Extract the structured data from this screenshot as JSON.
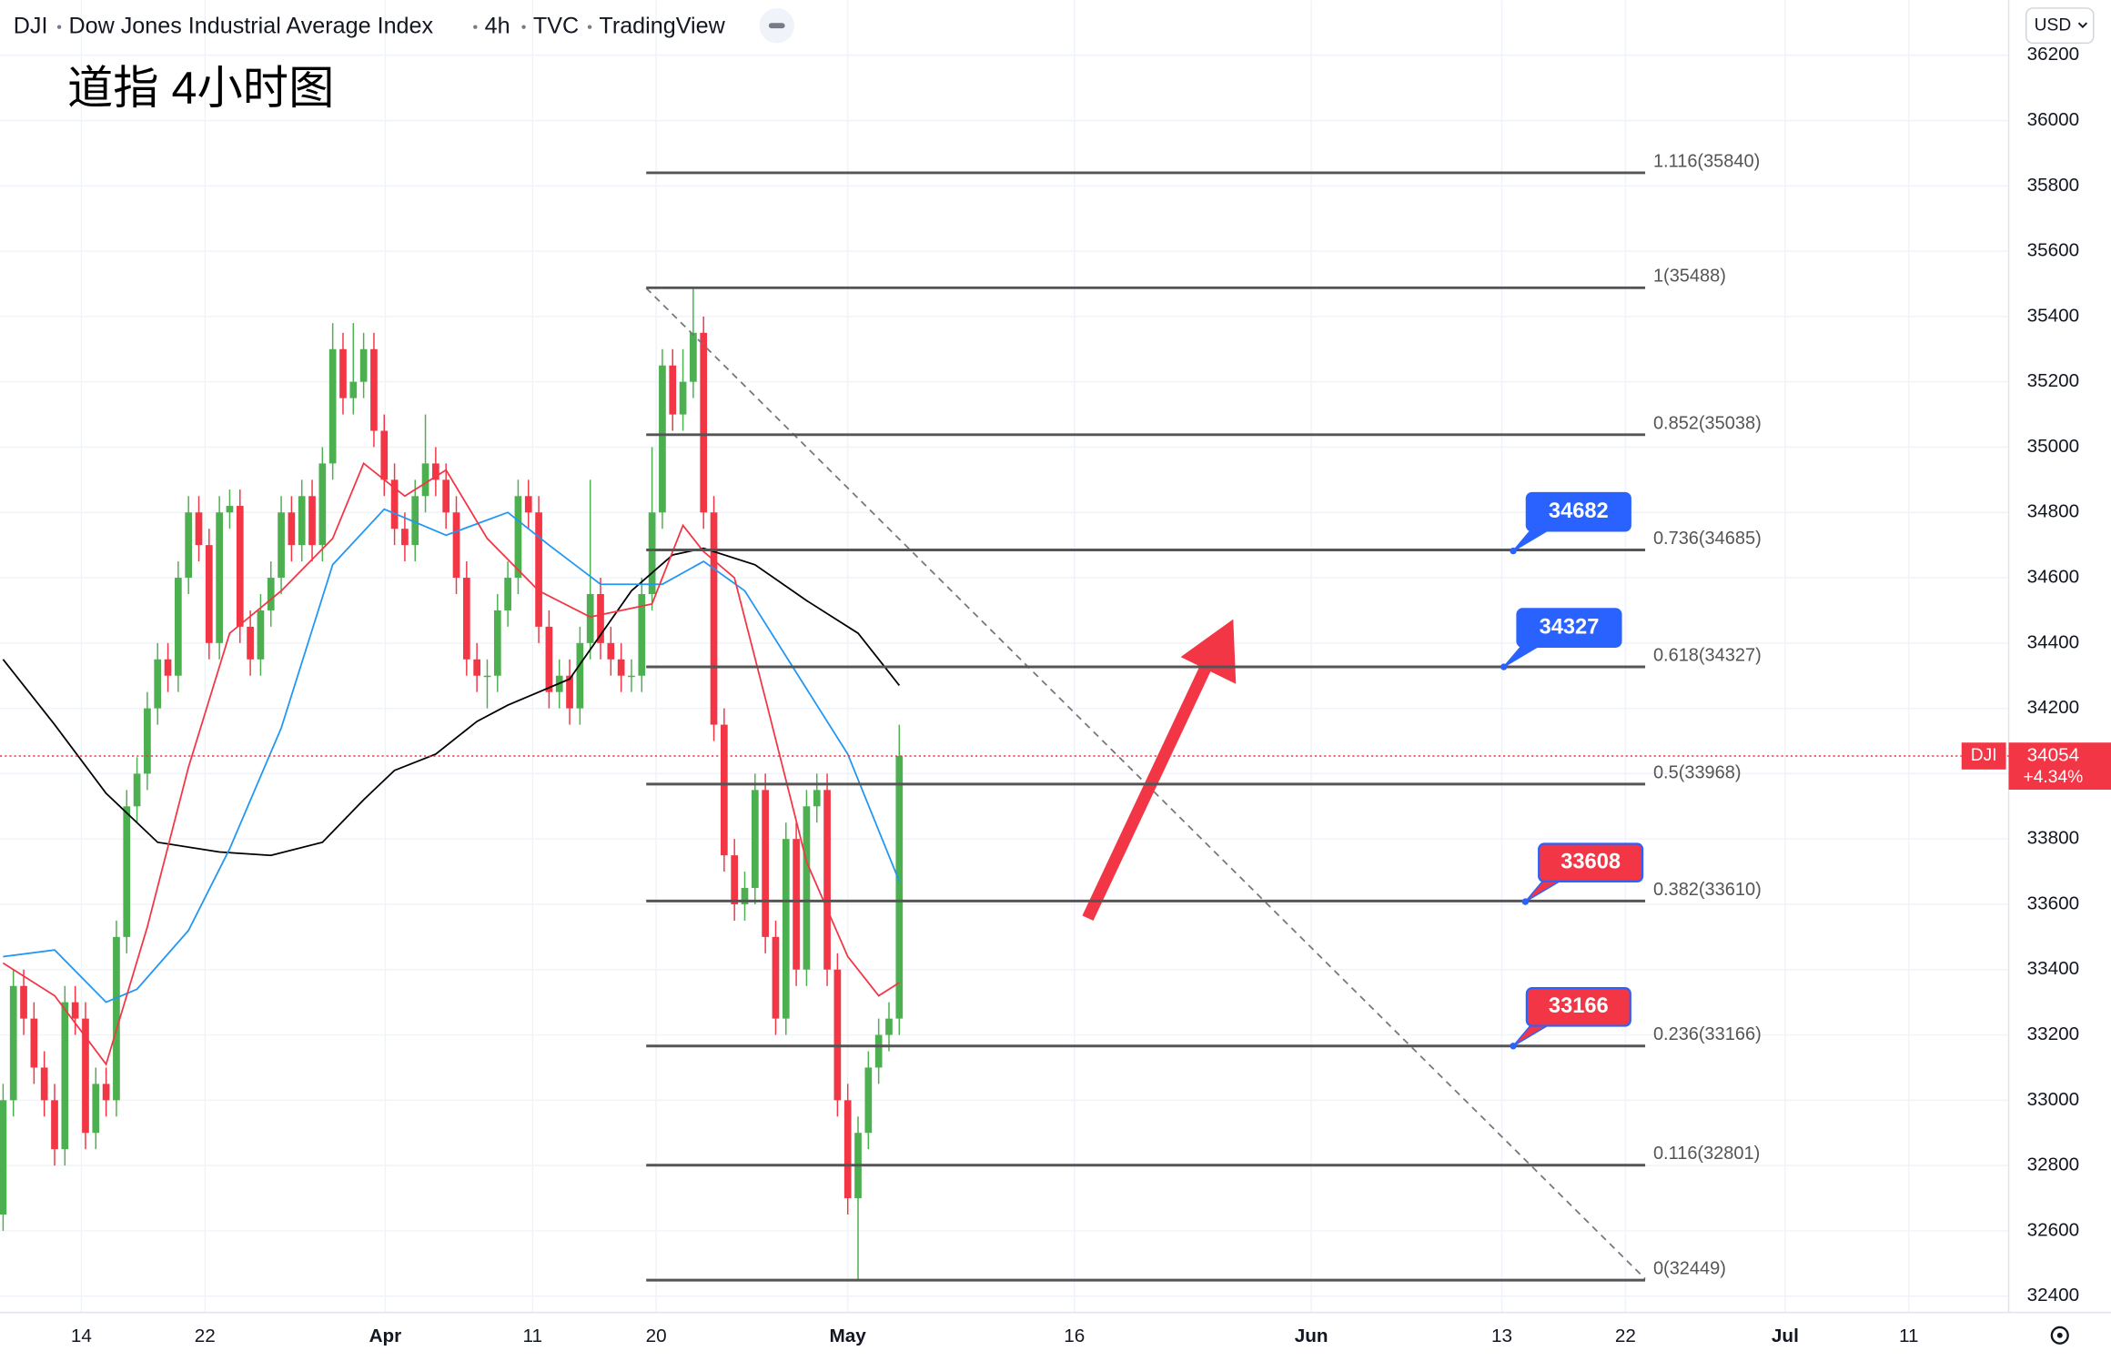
{
  "header": {
    "parts": [
      "DJI",
      "Dow Jones Industrial Average Index",
      "4h",
      "TVC",
      "TradingView"
    ],
    "currency": "USD"
  },
  "chart_data": {
    "type": "candlestick",
    "title": "道指 4小时图",
    "up_color": "#4caf50",
    "down_color": "#f23645",
    "xlim": [
      -0.3,
      194.7
    ],
    "ylim": [
      32350,
      36369
    ],
    "grid": true,
    "xticks": [
      {
        "value": 7.6,
        "label": "14"
      },
      {
        "value": 19.6,
        "label": "22"
      },
      {
        "value": 37.1,
        "label": "Apr"
      },
      {
        "value": 51.4,
        "label": "11"
      },
      {
        "value": 63.4,
        "label": "20"
      },
      {
        "value": 82,
        "label": "May"
      },
      {
        "value": 104,
        "label": "16"
      },
      {
        "value": 127,
        "label": "Jun"
      },
      {
        "value": 145.5,
        "label": "13"
      },
      {
        "value": 157.5,
        "label": "22"
      },
      {
        "value": 173,
        "label": "Jul"
      },
      {
        "value": 185,
        "label": "11"
      }
    ],
    "yticks": [
      32400,
      32600,
      32800,
      33000,
      33200,
      33400,
      33600,
      33800,
      34000,
      34200,
      34400,
      34600,
      34800,
      35000,
      35200,
      35400,
      35600,
      35800,
      36000,
      36200
    ],
    "open": [
      32650,
      33000,
      33350,
      33250,
      33100,
      33000,
      32850,
      33300,
      33250,
      32900,
      33050,
      33000,
      33500,
      33900,
      34000,
      34200,
      34350,
      34300,
      34600,
      34800,
      34700,
      34400,
      34800,
      34820,
      34450,
      34350,
      34500,
      34600,
      34800,
      34700,
      34850,
      34700,
      34950,
      35300,
      35150,
      35200,
      35300,
      35050,
      34900,
      34750,
      34700,
      34850,
      34950,
      34900,
      34800,
      34600,
      34350,
      34300,
      34300,
      34500,
      34600,
      34850,
      34800,
      34450,
      34250,
      34300,
      34200,
      34400,
      34550,
      34400,
      34350,
      34300,
      34300,
      34550,
      34800,
      35250,
      35100,
      35200,
      35350,
      34800,
      34150,
      33750,
      33600,
      33650,
      33950,
      33500,
      33250,
      33800,
      33400,
      33900,
      33950,
      33400,
      33000,
      32700,
      32900,
      33100,
      33200,
      33250
    ],
    "high": [
      33050,
      33400,
      33400,
      33300,
      33150,
      33050,
      33350,
      33350,
      33300,
      33100,
      33100,
      33550,
      33950,
      34050,
      34250,
      34400,
      34400,
      34650,
      34850,
      34850,
      34750,
      34850,
      34870,
      34870,
      34500,
      34550,
      34650,
      34850,
      34850,
      34900,
      34900,
      35000,
      35380,
      35350,
      35380,
      35350,
      35350,
      35100,
      34950,
      34800,
      34900,
      35100,
      35000,
      34950,
      34850,
      34650,
      34400,
      34350,
      34550,
      34650,
      34900,
      34900,
      34850,
      34500,
      34350,
      34350,
      34450,
      34900,
      34600,
      34450,
      34400,
      34350,
      34600,
      35000,
      35300,
      35300,
      35300,
      35488,
      35400,
      34850,
      34200,
      33800,
      33700,
      34000,
      34000,
      33550,
      33850,
      33850,
      33950,
      34000,
      34000,
      33450,
      33050,
      32950,
      33150,
      33250,
      33300,
      34150
    ],
    "low": [
      32600,
      32950,
      33200,
      33050,
      32950,
      32800,
      32800,
      33200,
      32850,
      32850,
      32950,
      32950,
      33450,
      33850,
      33950,
      34150,
      34250,
      34250,
      34550,
      34650,
      34350,
      34350,
      34750,
      34400,
      34300,
      34300,
      34450,
      34550,
      34650,
      34650,
      34650,
      34650,
      34900,
      35100,
      35100,
      35150,
      35000,
      34850,
      34700,
      34650,
      34650,
      34800,
      34850,
      34750,
      34550,
      34300,
      34250,
      34200,
      34250,
      34450,
      34550,
      34750,
      34400,
      34200,
      34200,
      34150,
      34150,
      34350,
      34350,
      34300,
      34250,
      34250,
      34250,
      34500,
      34750,
      35050,
      35050,
      35150,
      34750,
      34100,
      33700,
      33550,
      33550,
      33600,
      33450,
      33200,
      33200,
      33350,
      33350,
      33850,
      33350,
      32950,
      32650,
      32449,
      32850,
      33050,
      33150,
      33200
    ],
    "close": [
      33000,
      33350,
      33250,
      33100,
      33000,
      32850,
      33300,
      33250,
      32900,
      33050,
      33000,
      33500,
      33900,
      34000,
      34200,
      34350,
      34300,
      34600,
      34800,
      34700,
      34400,
      34800,
      34820,
      34450,
      34350,
      34500,
      34600,
      34800,
      34700,
      34850,
      34700,
      34950,
      35300,
      35150,
      35200,
      35300,
      35050,
      34900,
      34750,
      34700,
      34850,
      34950,
      34900,
      34800,
      34600,
      34350,
      34300,
      34300,
      34500,
      34600,
      34850,
      34800,
      34450,
      34250,
      34300,
      34200,
      34400,
      34550,
      34400,
      34350,
      34300,
      34300,
      34550,
      34800,
      35250,
      35100,
      35200,
      35350,
      34800,
      34150,
      33750,
      33600,
      33650,
      33950,
      33500,
      33250,
      33800,
      33400,
      33900,
      33950,
      33400,
      33000,
      32700,
      32900,
      33100,
      33200,
      33250,
      34054
    ],
    "overlays": [
      {
        "color": "#000000",
        "x": [
          0,
          5,
          10,
          15,
          21,
          26,
          31,
          35,
          38,
          42,
          46,
          49,
          55,
          61,
          65,
          68,
          73,
          78,
          83,
          87
        ],
        "values": [
          34350,
          34150,
          33940,
          33790,
          33760,
          33750,
          33790,
          33920,
          34010,
          34060,
          34160,
          34210,
          34290,
          34560,
          34670,
          34690,
          34640,
          34530,
          34430,
          34270
        ]
      },
      {
        "color": "#2196f3",
        "x": [
          0,
          5,
          10,
          13,
          18,
          22,
          27,
          32,
          37,
          43,
          49,
          53,
          58,
          64,
          68,
          72,
          77,
          82,
          87
        ],
        "values": [
          33440,
          33460,
          33300,
          33340,
          33520,
          33770,
          34140,
          34640,
          34810,
          34730,
          34800,
          34700,
          34580,
          34580,
          34650,
          34560,
          34310,
          34060,
          33670
        ]
      },
      {
        "color": "#f23645",
        "x": [
          0,
          5,
          10,
          14,
          18,
          22,
          27,
          32,
          35,
          39,
          43,
          47,
          52,
          57,
          63,
          66,
          68,
          71,
          74,
          78,
          82,
          85,
          87
        ],
        "values": [
          33420,
          33320,
          33110,
          33530,
          34020,
          34430,
          34560,
          34720,
          34950,
          34850,
          34930,
          34720,
          34560,
          34480,
          34520,
          34760,
          34680,
          34600,
          34230,
          33730,
          33440,
          33320,
          33360
        ]
      }
    ],
    "fib_levels": [
      {
        "label": "1.116(35840)",
        "value": 35840
      },
      {
        "label": "1(35488)",
        "value": 35488
      },
      {
        "label": "0.852(35038)",
        "value": 35038
      },
      {
        "label": "0.736(34685)",
        "value": 34685
      },
      {
        "label": "0.618(34327)",
        "value": 34327
      },
      {
        "label": "0.5(33968)",
        "value": 33968
      },
      {
        "label": "0.382(33610)",
        "value": 33610
      },
      {
        "label": "0.236(33166)",
        "value": 33166
      },
      {
        "label": "0.116(32801)",
        "value": 32801
      },
      {
        "label": "0(32449)",
        "value": 32449
      }
    ],
    "callouts": [
      {
        "value": 34682,
        "color": "#2962ff"
      },
      {
        "value": 34327,
        "color": "#2962ff"
      },
      {
        "value": 33608,
        "color": "#f23645"
      },
      {
        "value": 33166,
        "color": "#f23645"
      }
    ],
    "last_price": {
      "symbol": "DJI",
      "value": 34054,
      "change": "+4.34%",
      "color": "#f23645"
    }
  }
}
